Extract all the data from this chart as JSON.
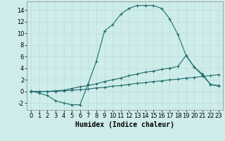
{
  "xlabel": "Humidex (Indice chaleur)",
  "ylabel": "",
  "background_color": "#ceecea",
  "grid_color": "#b8dedd",
  "line_color": "#1e6b6a",
  "xlim": [
    -0.5,
    23.5
  ],
  "ylim": [
    -3.2,
    15.5
  ],
  "xticks": [
    0,
    1,
    2,
    3,
    4,
    5,
    6,
    7,
    8,
    9,
    10,
    11,
    12,
    13,
    14,
    15,
    16,
    17,
    18,
    19,
    20,
    21,
    22,
    23
  ],
  "yticks": [
    -2,
    0,
    2,
    4,
    6,
    8,
    10,
    12,
    14
  ],
  "line1_x": [
    0,
    1,
    2,
    3,
    4,
    5,
    6,
    7,
    8,
    9,
    10,
    11,
    12,
    13,
    14,
    15,
    16,
    17,
    18,
    19,
    20,
    21,
    22,
    23
  ],
  "line1_y": [
    0.1,
    -0.3,
    -0.7,
    -1.6,
    -2.0,
    -2.3,
    -2.3,
    1.3,
    5.2,
    10.4,
    11.5,
    13.3,
    14.3,
    14.8,
    14.8,
    14.8,
    14.3,
    12.5,
    9.8,
    6.2,
    4.2,
    2.8,
    1.2,
    0.9
  ],
  "line2_x": [
    0,
    1,
    2,
    3,
    4,
    5,
    6,
    7,
    8,
    9,
    10,
    11,
    12,
    13,
    14,
    15,
    16,
    17,
    18,
    19,
    20,
    21,
    22,
    23
  ],
  "line2_y": [
    0.0,
    0.0,
    0.0,
    0.1,
    0.2,
    0.5,
    0.8,
    1.0,
    1.3,
    1.7,
    2.0,
    2.3,
    2.7,
    3.0,
    3.3,
    3.5,
    3.8,
    4.0,
    4.3,
    6.2,
    4.2,
    3.0,
    1.2,
    1.0
  ],
  "line3_x": [
    0,
    1,
    2,
    3,
    4,
    5,
    6,
    7,
    8,
    9,
    10,
    11,
    12,
    13,
    14,
    15,
    16,
    17,
    18,
    19,
    20,
    21,
    22,
    23
  ],
  "line3_y": [
    0.0,
    0.0,
    0.0,
    0.0,
    0.1,
    0.2,
    0.3,
    0.4,
    0.6,
    0.7,
    0.9,
    1.0,
    1.2,
    1.4,
    1.5,
    1.7,
    1.8,
    2.0,
    2.1,
    2.3,
    2.4,
    2.6,
    2.7,
    2.9
  ],
  "marker": "+",
  "markersize": 3,
  "markeredgewidth": 0.8,
  "linewidth": 0.8,
  "xlabel_fontsize": 7,
  "tick_fontsize": 6
}
